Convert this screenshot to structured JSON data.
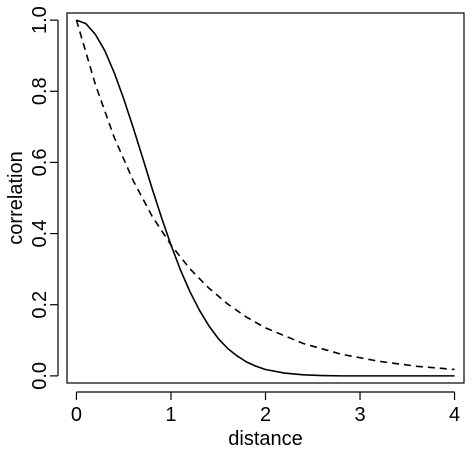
{
  "chart_data": {
    "type": "line",
    "xlabel": "distance",
    "ylabel": "correlation",
    "xlim": [
      -0.1,
      4.1
    ],
    "ylim": [
      -0.02,
      1.02
    ],
    "xticks": [
      0,
      1,
      2,
      3,
      4
    ],
    "yticks": [
      0.0,
      0.2,
      0.4,
      0.6,
      0.8,
      1.0
    ],
    "xtick_labels": [
      "0",
      "1",
      "2",
      "3",
      "4"
    ],
    "ytick_labels": [
      "0.0",
      "0.2",
      "0.4",
      "0.6",
      "0.8",
      "1.0"
    ],
    "grid": false,
    "series": [
      {
        "style": "solid",
        "color": "#000000",
        "x": [
          0,
          0.1,
          0.2,
          0.3,
          0.4,
          0.5,
          0.6,
          0.7,
          0.8,
          0.9,
          1.0,
          1.1,
          1.2,
          1.3,
          1.4,
          1.5,
          1.6,
          1.7,
          1.8,
          1.9,
          2.0,
          2.2,
          2.4,
          2.6,
          2.8,
          3.0,
          3.5,
          4.0
        ],
        "y": [
          1.0,
          0.99,
          0.96,
          0.914,
          0.852,
          0.779,
          0.698,
          0.613,
          0.527,
          0.445,
          0.368,
          0.298,
          0.237,
          0.185,
          0.141,
          0.105,
          0.077,
          0.056,
          0.039,
          0.027,
          0.018,
          0.008,
          0.003,
          0.001,
          0.0,
          0.0,
          0.0,
          0.0
        ]
      },
      {
        "style": "dashed",
        "color": "#000000",
        "x": [
          0,
          0.2,
          0.4,
          0.6,
          0.8,
          1.0,
          1.2,
          1.4,
          1.6,
          1.8,
          2.0,
          2.4,
          2.8,
          3.2,
          3.6,
          4.0
        ],
        "y": [
          1.0,
          0.819,
          0.67,
          0.549,
          0.449,
          0.368,
          0.301,
          0.247,
          0.202,
          0.165,
          0.135,
          0.091,
          0.061,
          0.041,
          0.027,
          0.018
        ]
      }
    ]
  }
}
